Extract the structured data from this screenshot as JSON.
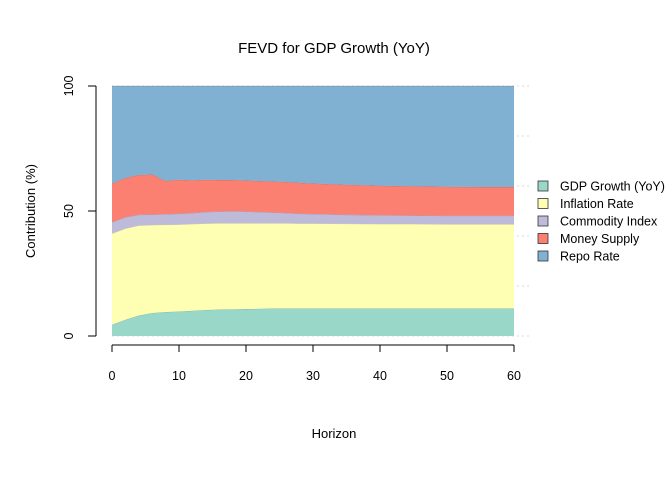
{
  "chart_data": {
    "type": "area",
    "title": "FEVD for GDP Growth (YoY)",
    "xlabel": "Horizon",
    "ylabel": "Contribution (%)",
    "xlim": [
      0,
      60
    ],
    "ylim": [
      0,
      100
    ],
    "x_ticks": [
      "0",
      "10",
      "20",
      "30",
      "40",
      "50",
      "60"
    ],
    "y_ticks": [
      "0",
      "50",
      "100"
    ],
    "grid": true,
    "stacked": true,
    "legend_position": "right",
    "x": [
      0,
      2,
      4,
      6,
      8,
      10,
      12,
      14,
      16,
      18,
      20,
      22,
      24,
      26,
      28,
      30,
      35,
      40,
      45,
      50,
      55,
      60
    ],
    "series": [
      {
        "name": "GDP Growth (YoY)",
        "color": "#99d8c9",
        "values": [
          4.5,
          6.5,
          8.2,
          9.2,
          9.6,
          9.8,
          10.1,
          10.4,
          10.6,
          10.7,
          10.8,
          10.9,
          11.0,
          11.0,
          11.0,
          11.0,
          11.0,
          11.0,
          11.0,
          11.0,
          11.0,
          11.0
        ]
      },
      {
        "name": "Inflation Rate",
        "color": "#ffffb3",
        "values": [
          36.5,
          36.5,
          36.0,
          35.2,
          34.9,
          34.8,
          34.7,
          34.6,
          34.5,
          34.4,
          34.3,
          34.2,
          34.1,
          34.1,
          34.0,
          34.0,
          33.9,
          33.8,
          33.8,
          33.7,
          33.7,
          33.7
        ]
      },
      {
        "name": "Commodity Index",
        "color": "#bebada",
        "values": [
          4.5,
          4.5,
          4.3,
          4.2,
          4.2,
          4.3,
          4.4,
          4.6,
          4.7,
          4.8,
          4.7,
          4.5,
          4.3,
          4.1,
          3.9,
          3.8,
          3.6,
          3.5,
          3.4,
          3.4,
          3.4,
          3.4
        ]
      },
      {
        "name": "Money Supply",
        "color": "#fb8072",
        "values": [
          15.5,
          15.7,
          15.9,
          16.0,
          13.3,
          13.6,
          13.1,
          12.9,
          12.6,
          12.5,
          12.4,
          12.4,
          12.4,
          12.4,
          12.4,
          12.2,
          12.0,
          11.8,
          11.7,
          11.6,
          11.5,
          11.5
        ]
      },
      {
        "name": "Repo Rate",
        "color": "#80b1d3",
        "values": [
          39.0,
          36.8,
          35.6,
          35.4,
          38.0,
          37.5,
          37.7,
          37.5,
          37.6,
          37.6,
          37.8,
          38.0,
          38.2,
          38.4,
          38.7,
          39.0,
          39.5,
          39.9,
          40.1,
          40.3,
          40.4,
          40.4
        ]
      }
    ]
  }
}
